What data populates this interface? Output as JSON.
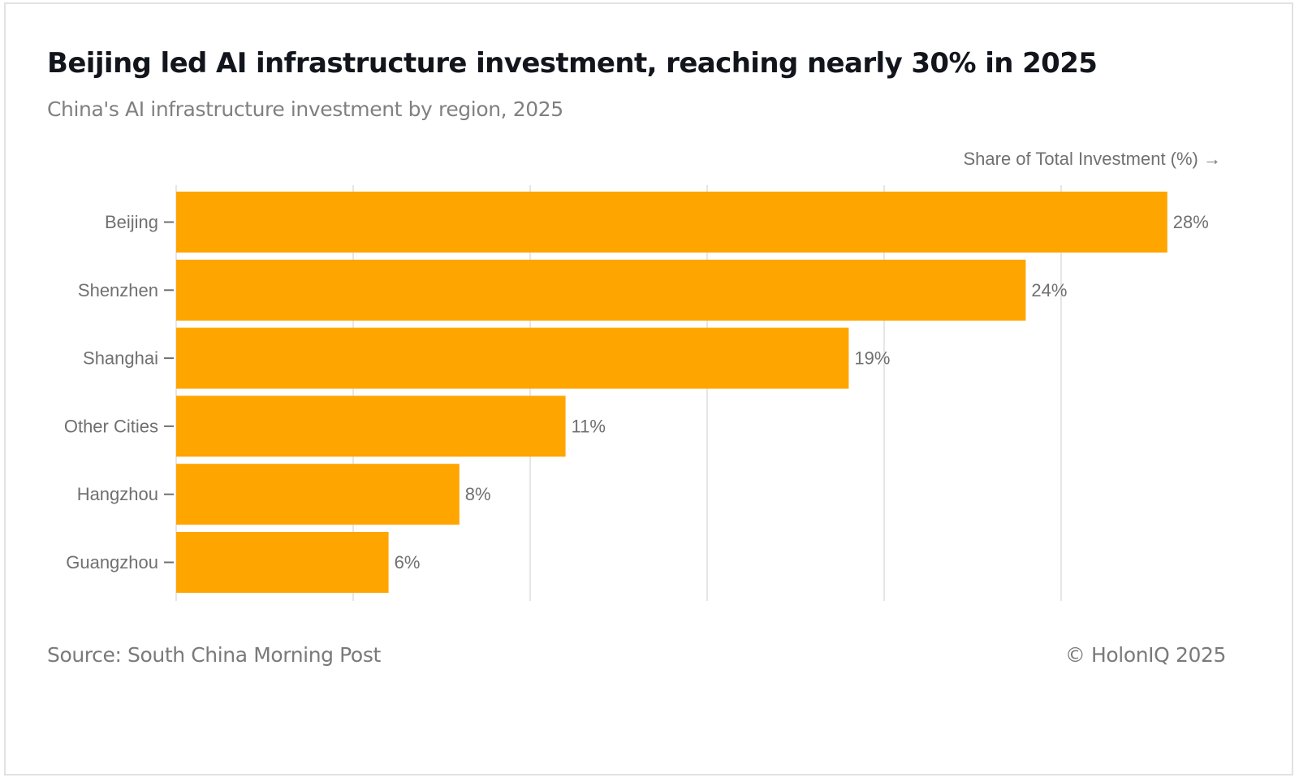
{
  "header": {
    "title": "Beijing led AI infrastructure investment, reaching nearly 30% in 2025",
    "subtitle": "China's AI infrastructure investment by region, 2025"
  },
  "footer": {
    "source": "Source: South China Morning Post",
    "copyright": "© HolonIQ 2025"
  },
  "colors": {
    "bar": "#FFA500",
    "gridline": "#e6e6e6",
    "tick": "#707070"
  },
  "chart_data": {
    "type": "bar",
    "orientation": "horizontal",
    "title": "Beijing led AI infrastructure investment, reaching nearly 30% in 2025",
    "subtitle": "China's AI infrastructure investment by region, 2025",
    "xlabel": "Share of Total Investment (%) →",
    "ylabel": "",
    "categories": [
      "Beijing",
      "Shenzhen",
      "Shanghai",
      "Other Cities",
      "Hangzhou",
      "Guangzhou"
    ],
    "values": [
      28,
      24,
      19,
      11,
      8,
      6
    ],
    "data_labels": [
      "28%",
      "24%",
      "19%",
      "11%",
      "8%",
      "6%"
    ],
    "xlim": [
      0,
      30
    ],
    "x_gridlines": [
      0,
      5,
      10,
      15,
      20,
      25
    ],
    "x_tick_labels_shown": false,
    "grid": true,
    "legend": "none"
  }
}
